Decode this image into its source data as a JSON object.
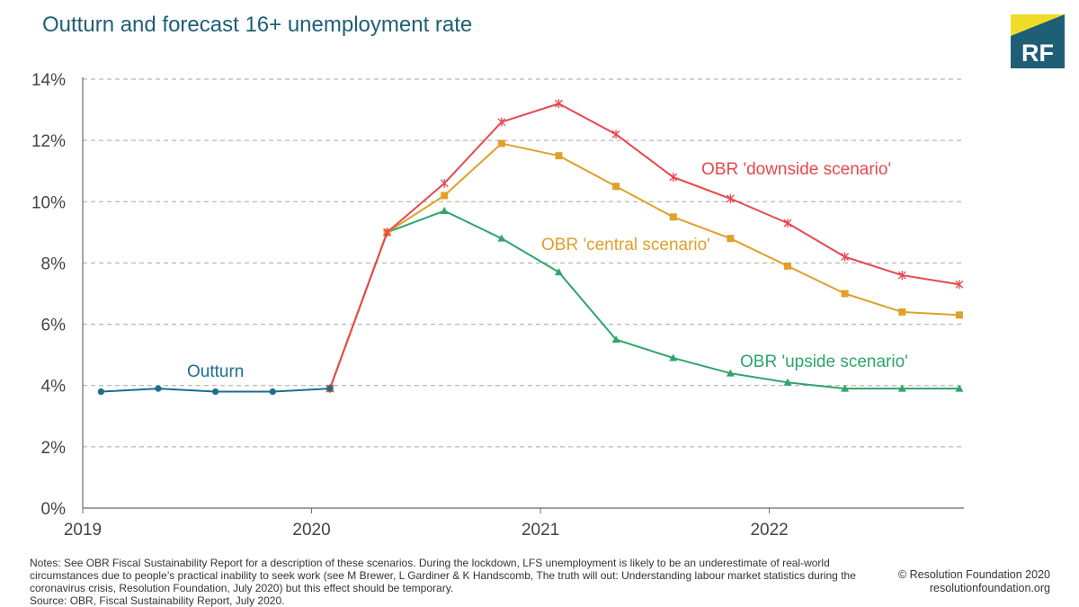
{
  "header": {
    "title": "Outturn and forecast 16+ unemployment rate",
    "logo_text": "RF"
  },
  "colors": {
    "title": "#1f5f75",
    "outturn": "#1a6e8e",
    "downside": "#e8474d",
    "central": "#e0a02a",
    "upside": "#2ea56b",
    "logo_bg": "#1f5f75",
    "logo_accent": "#f0dc28",
    "grid": "#a6a6a6",
    "axis": "#6b6b6b"
  },
  "chart_data": {
    "type": "line",
    "title": "Outturn and forecast 16+ unemployment rate",
    "xlabel": "",
    "ylabel": "",
    "xlim": [
      2019,
      2022.85
    ],
    "ylim": [
      0,
      14
    ],
    "y_ticks": [
      0,
      2,
      4,
      6,
      8,
      10,
      12,
      14
    ],
    "y_tick_labels": [
      "0%",
      "2%",
      "4%",
      "6%",
      "8%",
      "10%",
      "12%",
      "14%"
    ],
    "x_ticks": [
      2019,
      2020,
      2021,
      2022
    ],
    "x_tick_labels": [
      "2019",
      "2020",
      "2021",
      "2022"
    ],
    "grid": "horizontal dashed",
    "series": [
      {
        "name": "Outturn",
        "color": "#1a6e8e",
        "marker": "circle",
        "x": [
          2019.08,
          2019.33,
          2019.58,
          2019.83,
          2020.08
        ],
        "y": [
          3.8,
          3.9,
          3.8,
          3.8,
          3.9
        ]
      },
      {
        "name": "OBR 'downside scenario'",
        "color": "#e8474d",
        "marker": "star",
        "x": [
          2020.08,
          2020.33,
          2020.58,
          2020.83,
          2021.08,
          2021.33,
          2021.58,
          2021.83,
          2022.08,
          2022.33,
          2022.58,
          2022.83
        ],
        "y": [
          3.9,
          9.0,
          10.6,
          12.6,
          13.2,
          12.2,
          10.8,
          10.1,
          9.3,
          8.2,
          7.6,
          7.3
        ]
      },
      {
        "name": "OBR 'central scenario'",
        "color": "#e0a02a",
        "marker": "square",
        "x": [
          2020.08,
          2020.33,
          2020.58,
          2020.83,
          2021.08,
          2021.33,
          2021.58,
          2021.83,
          2022.08,
          2022.33,
          2022.58,
          2022.83
        ],
        "y": [
          3.9,
          9.0,
          10.2,
          11.9,
          11.5,
          10.5,
          9.5,
          8.8,
          7.9,
          7.0,
          6.4,
          6.3
        ]
      },
      {
        "name": "OBR 'upside scenario'",
        "color": "#2ea56b",
        "marker": "triangle",
        "x": [
          2020.08,
          2020.33,
          2020.58,
          2020.83,
          2021.08,
          2021.33,
          2021.58,
          2021.83,
          2022.08,
          2022.33,
          2022.58,
          2022.83
        ],
        "y": [
          3.9,
          9.0,
          9.7,
          8.8,
          7.7,
          5.5,
          4.9,
          4.4,
          4.1,
          3.9,
          3.9,
          3.9
        ]
      }
    ],
    "annotations": [
      {
        "text": "Outturn",
        "series": "Outturn"
      },
      {
        "text": "OBR 'downside scenario'",
        "series": "OBR 'downside scenario'"
      },
      {
        "text": "OBR 'central scenario'",
        "series": "OBR 'central scenario'"
      },
      {
        "text": "OBR 'upside scenario'",
        "series": "OBR 'upside scenario'"
      }
    ]
  },
  "footer": {
    "notes": "Notes: See OBR Fiscal Sustainability Report for a description of these scenarios. During the lockdown, LFS unemployment is likely to be an underestimate of real-world circumstances due to people’s practical inability to seek work (see M Brewer, L Gardiner & K Handscomb, The truth will out: Understanding labour market statistics during the coronavirus crisis, Resolution Foundation, July 2020) but this effect should be temporary.",
    "source": "Source: OBR, Fiscal Sustainability Report, July 2020.",
    "copyright": "© Resolution Foundation 2020",
    "website": "resolutionfoundation.org"
  }
}
